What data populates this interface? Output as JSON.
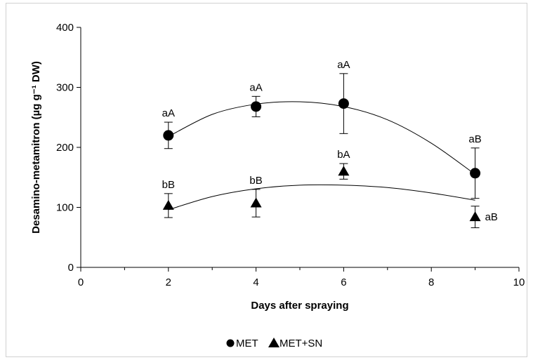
{
  "chart_data": {
    "type": "scatter",
    "title": "",
    "xlabel": "Days after spraying",
    "ylabel": "Desamino-metamitron  (µg g⁻¹ DW)",
    "xlim": [
      0,
      10
    ],
    "ylim": [
      0,
      400
    ],
    "xticks": [
      "0",
      "2",
      "4",
      "6",
      "8",
      "10"
    ],
    "yticks": [
      "0",
      "100",
      "200",
      "300",
      "400"
    ],
    "grid": false,
    "legend_position": "bottom",
    "series": [
      {
        "name": "MET",
        "marker": "circle",
        "x": [
          2,
          4,
          6,
          9
        ],
        "y": [
          220,
          268,
          273,
          157
        ],
        "error": [
          22,
          17,
          50,
          42
        ],
        "labels": [
          "aA",
          "aA",
          "aA",
          "aB"
        ],
        "trend": [
          [
            2,
            218
          ],
          [
            3,
            255
          ],
          [
            4,
            272
          ],
          [
            5,
            276
          ],
          [
            6,
            268
          ],
          [
            7,
            246
          ],
          [
            8,
            207
          ],
          [
            9,
            155
          ]
        ]
      },
      {
        "name": "MET+SN",
        "marker": "triangle",
        "x": [
          2,
          4,
          6,
          9
        ],
        "y": [
          103,
          107,
          160,
          84
        ],
        "error": [
          20,
          23,
          13,
          18
        ],
        "labels": [
          "bB",
          "bB",
          "bA",
          "aB"
        ],
        "trend": [
          [
            2,
            96
          ],
          [
            3,
            118
          ],
          [
            4,
            131
          ],
          [
            5,
            137
          ],
          [
            6,
            137
          ],
          [
            7,
            133
          ],
          [
            8,
            124
          ],
          [
            9,
            112
          ]
        ]
      }
    ]
  }
}
